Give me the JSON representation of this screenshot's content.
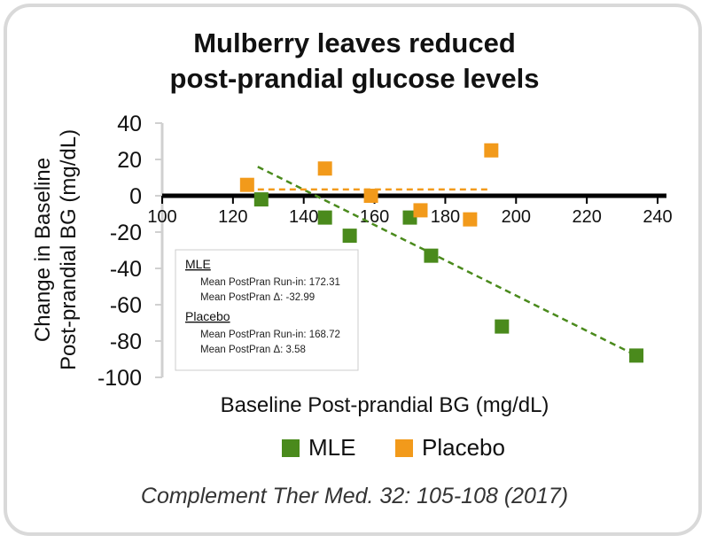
{
  "chart_data": {
    "type": "scatter",
    "title_lines": [
      "Mulberry leaves reduced",
      "post-prandial glucose levels"
    ],
    "xlabel": "Baseline Post-prandial BG (mg/dL)",
    "ylabel_lines": [
      "Change in Baseline",
      "Post-prandial BG (mg/dL)"
    ],
    "xlim": [
      100,
      240
    ],
    "ylim": [
      -100,
      40
    ],
    "x_ticks": [
      100,
      120,
      140,
      160,
      180,
      200,
      220,
      240
    ],
    "y_ticks": [
      40,
      20,
      0,
      -20,
      -40,
      -60,
      -80,
      -100
    ],
    "grid": false,
    "legend_position": "bottom",
    "series": [
      {
        "name": "MLE",
        "color": "#4a8a1c",
        "marker": "square",
        "points": [
          [
            128,
            -2
          ],
          [
            146,
            -12
          ],
          [
            153,
            -22
          ],
          [
            170,
            -12
          ],
          [
            176,
            -33
          ],
          [
            196,
            -72
          ],
          [
            234,
            -88
          ]
        ],
        "trendline": {
          "x": [
            127,
            234
          ],
          "y": [
            16,
            -88
          ]
        }
      },
      {
        "name": "Placebo",
        "color": "#f29a1b",
        "marker": "square",
        "points": [
          [
            124,
            6
          ],
          [
            146,
            15
          ],
          [
            159,
            0
          ],
          [
            173,
            -8
          ],
          [
            187,
            -13
          ],
          [
            193,
            25
          ]
        ],
        "trendline": {
          "x": [
            124,
            193
          ],
          "y": [
            3.5,
            3.5
          ]
        }
      }
    ],
    "annotation_box": {
      "sections": [
        {
          "header": "MLE",
          "lines": [
            "Mean PostPran Run-in: 172.31",
            "Mean PostPran Δ: -32.99"
          ]
        },
        {
          "header": "Placebo",
          "lines": [
            "Mean PostPran Run-in: 168.72",
            "Mean PostPran Δ: 3.58"
          ]
        }
      ]
    }
  },
  "citation": "Complement Ther Med. 32: 105-108 (2017)"
}
